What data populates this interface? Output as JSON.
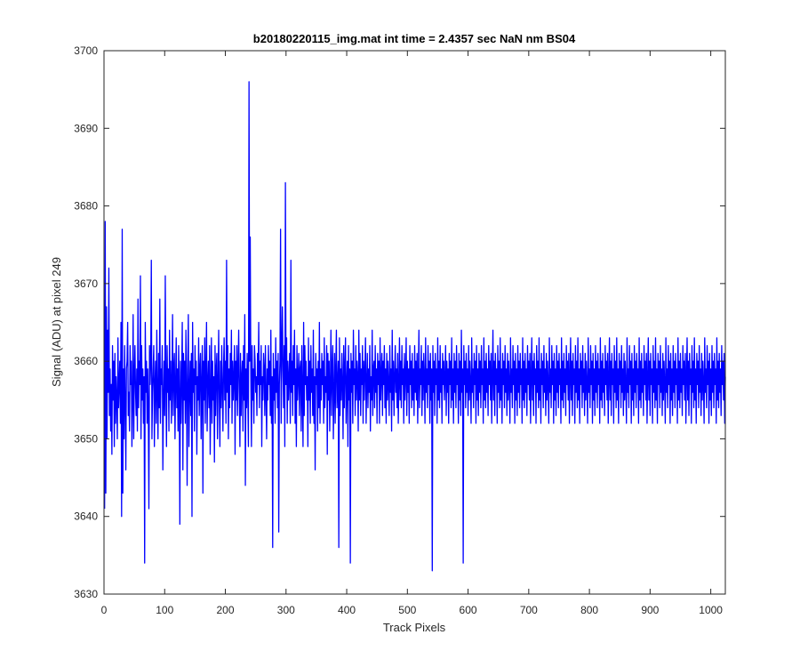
{
  "chart_data": {
    "type": "line",
    "title": "b20180220115_img.mat int time = 2.4357 sec  NaN nm BS04",
    "xlabel": "Track Pixels",
    "ylabel": "Signal (ADU) at pixel 249",
    "xlim": [
      0,
      1024
    ],
    "ylim": [
      3630,
      3700
    ],
    "xticks": [
      0,
      100,
      200,
      300,
      400,
      500,
      600,
      700,
      800,
      900,
      1000
    ],
    "yticks": [
      3630,
      3640,
      3650,
      3660,
      3670,
      3680,
      3690,
      3700
    ],
    "grid": false,
    "series": [
      {
        "color": "#0000ff",
        "x_start": 1,
        "x_step": 1,
        "y": [
          3641,
          3678,
          3643,
          3667,
          3650,
          3664,
          3656,
          3672,
          3653,
          3659,
          3651,
          3657,
          3648,
          3662,
          3655,
          3660,
          3649,
          3661,
          3652,
          3658,
          3655,
          3650,
          3663,
          3654,
          3657,
          3660,
          3652,
          3665,
          3640,
          3677,
          3643,
          3659,
          3650,
          3662,
          3655,
          3646,
          3659,
          3660,
          3665,
          3653,
          3656,
          3651,
          3662,
          3657,
          3660,
          3649,
          3655,
          3666,
          3650,
          3658,
          3662,
          3656,
          3653,
          3659,
          3651,
          3668,
          3654,
          3660,
          3657,
          3671,
          3650,
          3662,
          3655,
          3659,
          3652,
          3658,
          3634,
          3665,
          3656,
          3660,
          3652,
          3659,
          3654,
          3641,
          3662,
          3657,
          3660,
          3673,
          3650,
          3656,
          3659,
          3662,
          3649,
          3657,
          3660,
          3652,
          3664,
          3656,
          3650,
          3661,
          3654,
          3668,
          3652,
          3659,
          3657,
          3662,
          3646,
          3655,
          3660,
          3653,
          3671,
          3657,
          3649,
          3662,
          3656,
          3659,
          3651,
          3664,
          3655,
          3660,
          3652,
          3657,
          3666,
          3653,
          3659,
          3661,
          3650,
          3657,
          3663,
          3654,
          3659,
          3651,
          3662,
          3656,
          3639,
          3660,
          3652,
          3658,
          3665,
          3646,
          3661,
          3655,
          3660,
          3652,
          3664,
          3657,
          3644,
          3659,
          3666,
          3649,
          3656,
          3660,
          3653,
          3661,
          3640,
          3665,
          3656,
          3659,
          3651,
          3662,
          3657,
          3660,
          3648,
          3658,
          3655,
          3663,
          3653,
          3659,
          3661,
          3650,
          3657,
          3662,
          3643,
          3660,
          3655,
          3663,
          3652,
          3659,
          3665,
          3651,
          3657,
          3660,
          3654,
          3662,
          3648,
          3656,
          3663,
          3652,
          3660,
          3655,
          3658,
          3647,
          3662,
          3653,
          3659,
          3661,
          3650,
          3657,
          3664,
          3655,
          3649,
          3660,
          3654,
          3662,
          3657,
          3651,
          3659,
          3663,
          3655,
          3660,
          3652,
          3673,
          3656,
          3662,
          3650,
          3659,
          3654,
          3661,
          3657,
          3664,
          3652,
          3660,
          3655,
          3658,
          3662,
          3648,
          3660,
          3655,
          3662,
          3653,
          3659,
          3664,
          3656,
          3649,
          3661,
          3653,
          3658,
          3660,
          3651,
          3662,
          3655,
          3666,
          3644,
          3659,
          3654,
          3661,
          3656,
          3649,
          3696,
          3660,
          3676,
          3658,
          3649,
          3662,
          3655,
          3659,
          3652,
          3662,
          3660,
          3656,
          3658,
          3653,
          3661,
          3657,
          3665,
          3654,
          3660,
          3657,
          3662,
          3649,
          3658,
          3655,
          3661,
          3659,
          3653,
          3662,
          3656,
          3650,
          3659,
          3655,
          3662,
          3657,
          3660,
          3653,
          3664,
          3652,
          3658,
          3636,
          3661,
          3655,
          3659,
          3652,
          3663,
          3656,
          3660,
          3654,
          3661,
          3638,
          3657,
          3660,
          3677,
          3652,
          3661,
          3667,
          3659,
          3654,
          3662,
          3649,
          3683,
          3657,
          3663,
          3652,
          3660,
          3655,
          3658,
          3661,
          3652,
          3673,
          3656,
          3660,
          3653,
          3662,
          3657,
          3664,
          3652,
          3659,
          3649,
          3662,
          3655,
          3658,
          3661,
          3653,
          3659,
          3660,
          3651,
          3662,
          3656,
          3649,
          3665,
          3653,
          3662,
          3657,
          3660,
          3655,
          3658,
          3649,
          3663,
          3655,
          3660,
          3652,
          3662,
          3656,
          3659,
          3653,
          3664,
          3652,
          3658,
          3646,
          3661,
          3657,
          3659,
          3651,
          3660,
          3654,
          3665,
          3652,
          3659,
          3655,
          3661,
          3657,
          3660,
          3652,
          3663,
          3654,
          3658,
          3656,
          3662,
          3648,
          3661,
          3655,
          3660,
          3651,
          3657,
          3664,
          3653,
          3659,
          3662,
          3650,
          3656,
          3661,
          3652,
          3659,
          3664,
          3654,
          3657,
          3660,
          3636,
          3663,
          3653,
          3659,
          3655,
          3661,
          3657,
          3650,
          3662,
          3654,
          3659,
          3663,
          3652,
          3657,
          3660,
          3649,
          3662,
          3655,
          3659,
          3634,
          3661,
          3656,
          3660,
          3652,
          3664,
          3657,
          3659,
          3653,
          3662,
          3655,
          3660,
          3658,
          3651,
          3664,
          3655,
          3661,
          3653,
          3659,
          3657,
          3662,
          3652,
          3660,
          3655,
          3659,
          3663,
          3652,
          3657,
          3661,
          3654,
          3659,
          3656,
          3662,
          3651,
          3658,
          3655,
          3664,
          3653,
          3659,
          3660,
          3654,
          3662,
          3656,
          3659,
          3652,
          3661,
          3657,
          3660,
          3652,
          3663,
          3655,
          3658,
          3661,
          3653,
          3660,
          3657,
          3662,
          3654,
          3659,
          3652,
          3661,
          3655,
          3660,
          3657,
          3653,
          3662,
          3656,
          3659,
          3651,
          3664,
          3655,
          3660,
          3653,
          3658,
          3662,
          3656,
          3659,
          3654,
          3661,
          3652,
          3657,
          3663,
          3655,
          3660,
          3654,
          3662,
          3657,
          3659,
          3652,
          3661,
          3655,
          3658,
          3663,
          3653,
          3660,
          3656,
          3659,
          3652,
          3662,
          3657,
          3660,
          3654,
          3661,
          3655,
          3659,
          3653,
          3662,
          3656,
          3660,
          3655,
          3661,
          3652,
          3658,
          3664,
          3654,
          3659,
          3657,
          3662,
          3653,
          3660,
          3655,
          3661,
          3658,
          3652,
          3663,
          3656,
          3659,
          3654,
          3662,
          3657,
          3660,
          3652,
          3661,
          3655,
          3659,
          3633,
          3662,
          3656,
          3660,
          3653,
          3661,
          3657,
          3659,
          3652,
          3663,
          3655,
          3660,
          3654,
          3662,
          3656,
          3659,
          3652,
          3661,
          3657,
          3660,
          3655,
          3658,
          3662,
          3653,
          3660,
          3656,
          3659,
          3652,
          3661,
          3657,
          3660,
          3654,
          3663,
          3655,
          3659,
          3652,
          3661,
          3656,
          3660,
          3654,
          3662,
          3657,
          3659,
          3652,
          3661,
          3655,
          3660,
          3653,
          3664,
          3656,
          3659,
          3634,
          3662,
          3657,
          3660,
          3654,
          3661,
          3656,
          3659,
          3653,
          3662,
          3655,
          3660,
          3657,
          3652,
          3663,
          3656,
          3659,
          3654,
          3661,
          3657,
          3660,
          3652,
          3662,
          3655,
          3659,
          3653,
          3661,
          3656,
          3660,
          3654,
          3662,
          3657,
          3659,
          3652,
          3663,
          3655,
          3660,
          3654,
          3661,
          3656,
          3659,
          3653,
          3662,
          3657,
          3660,
          3655,
          3661,
          3652,
          3658,
          3664,
          3655,
          3660,
          3653,
          3661,
          3657,
          3659,
          3652,
          3662,
          3656,
          3660,
          3654,
          3663,
          3655,
          3659,
          3652,
          3661,
          3657,
          3660,
          3654,
          3662,
          3656,
          3659,
          3653,
          3661,
          3655,
          3660,
          3657,
          3652,
          3663,
          3656,
          3659,
          3654,
          3662,
          3657,
          3660,
          3652,
          3661,
          3655,
          3659,
          3653,
          3662,
          3656,
          3660,
          3654,
          3661,
          3657,
          3659,
          3652,
          3663,
          3655,
          3660,
          3654,
          3661,
          3656,
          3659,
          3653,
          3662,
          3657,
          3660,
          3655,
          3661,
          3652,
          3658,
          3663,
          3655,
          3660,
          3653,
          3661,
          3657,
          3659,
          3652,
          3662,
          3656,
          3660,
          3654,
          3663,
          3655,
          3659,
          3652,
          3661,
          3657,
          3660,
          3654,
          3662,
          3656,
          3659,
          3653,
          3661,
          3655,
          3660,
          3657,
          3652,
          3663,
          3656,
          3659,
          3654,
          3662,
          3657,
          3660,
          3652,
          3661,
          3655,
          3659,
          3653,
          3662,
          3656,
          3660,
          3654,
          3661,
          3657,
          3659,
          3652,
          3663,
          3655,
          3660,
          3654,
          3661,
          3656,
          3659,
          3653,
          3662,
          3657,
          3660,
          3655,
          3661,
          3652,
          3658,
          3663,
          3655,
          3660,
          3653,
          3661,
          3657,
          3659,
          3652,
          3662,
          3656,
          3660,
          3654,
          3663,
          3655,
          3659,
          3652,
          3661,
          3657,
          3660,
          3654,
          3662,
          3656,
          3659,
          3653,
          3661,
          3655,
          3660,
          3657,
          3652,
          3663,
          3656,
          3659,
          3654,
          3662,
          3657,
          3660,
          3652,
          3661,
          3655,
          3659,
          3653,
          3662,
          3656,
          3660,
          3654,
          3661,
          3657,
          3659,
          3652,
          3663,
          3655,
          3660,
          3654,
          3661,
          3656,
          3659,
          3653,
          3662,
          3657,
          3660,
          3655,
          3661,
          3652,
          3658,
          3663,
          3655,
          3660,
          3653,
          3661,
          3657,
          3659,
          3652,
          3662,
          3656,
          3660,
          3654,
          3663,
          3655,
          3659,
          3652,
          3661,
          3657,
          3660,
          3654,
          3662,
          3656,
          3659,
          3653,
          3661,
          3655,
          3660,
          3657,
          3652,
          3663,
          3656,
          3659,
          3654,
          3662,
          3657,
          3660,
          3652,
          3661,
          3655,
          3659,
          3653,
          3662,
          3656,
          3660,
          3654,
          3661,
          3657,
          3659,
          3652,
          3663,
          3655,
          3660,
          3654,
          3661,
          3656,
          3659,
          3653,
          3662,
          3657,
          3660,
          3655,
          3661,
          3652,
          3658,
          3663,
          3655,
          3660,
          3653,
          3661,
          3657,
          3659,
          3652,
          3662,
          3656,
          3660,
          3654,
          3663,
          3655,
          3659,
          3652,
          3661,
          3657,
          3660,
          3654,
          3662,
          3656,
          3659,
          3653,
          3661,
          3655,
          3660,
          3657,
          3652,
          3663,
          3656,
          3659,
          3654,
          3662,
          3657,
          3660,
          3652,
          3661,
          3655,
          3659,
          3653,
          3662,
          3656,
          3660,
          3654,
          3661,
          3657,
          3659,
          3652,
          3663,
          3655,
          3660,
          3654,
          3661,
          3656,
          3659,
          3653,
          3662,
          3657,
          3660,
          3655,
          3661,
          3652,
          3658,
          3663,
          3655,
          3660,
          3653,
          3661,
          3657,
          3659,
          3652,
          3662,
          3656,
          3660,
          3654,
          3663,
          3655,
          3659,
          3652,
          3661,
          3657,
          3660,
          3654,
          3662,
          3656,
          3659,
          3653,
          3661,
          3655,
          3660,
          3657,
          3652,
          3663,
          3656,
          3659,
          3654,
          3662,
          3657,
          3660,
          3652,
          3661,
          3655,
          3659,
          3653,
          3662,
          3656,
          3660,
          3654,
          3661,
          3657,
          3659,
          3652,
          3663,
          3655,
          3660,
          3654,
          3661,
          3656,
          3659,
          3653,
          3662,
          3657,
          3660,
          3655,
          3661,
          3652,
          3658
        ]
      }
    ]
  }
}
